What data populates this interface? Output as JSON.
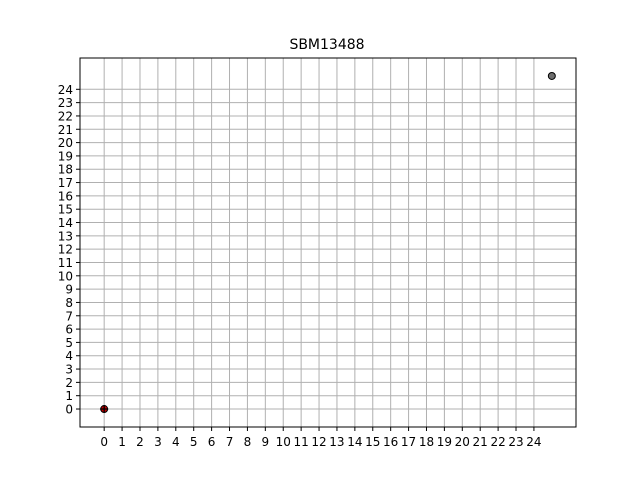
{
  "chart_data": {
    "type": "scatter",
    "title": "SBM13488",
    "xlabel": "",
    "ylabel": "",
    "xlim": [
      -1.35,
      26.35
    ],
    "ylim": [
      -1.35,
      26.35
    ],
    "xticks": [
      0,
      1,
      2,
      3,
      4,
      5,
      6,
      7,
      8,
      9,
      10,
      11,
      12,
      13,
      14,
      15,
      16,
      17,
      18,
      19,
      20,
      21,
      22,
      23,
      24
    ],
    "yticks": [
      0,
      1,
      2,
      3,
      4,
      5,
      6,
      7,
      8,
      9,
      10,
      11,
      12,
      13,
      14,
      15,
      16,
      17,
      18,
      19,
      20,
      21,
      22,
      23,
      24
    ],
    "grid": true,
    "points": [
      {
        "x": 25,
        "y": 25,
        "color": "#6e6e6e",
        "marker": "circle"
      },
      {
        "x": 0,
        "y": 0,
        "color": "#cc0000",
        "marker": "plus"
      }
    ]
  }
}
